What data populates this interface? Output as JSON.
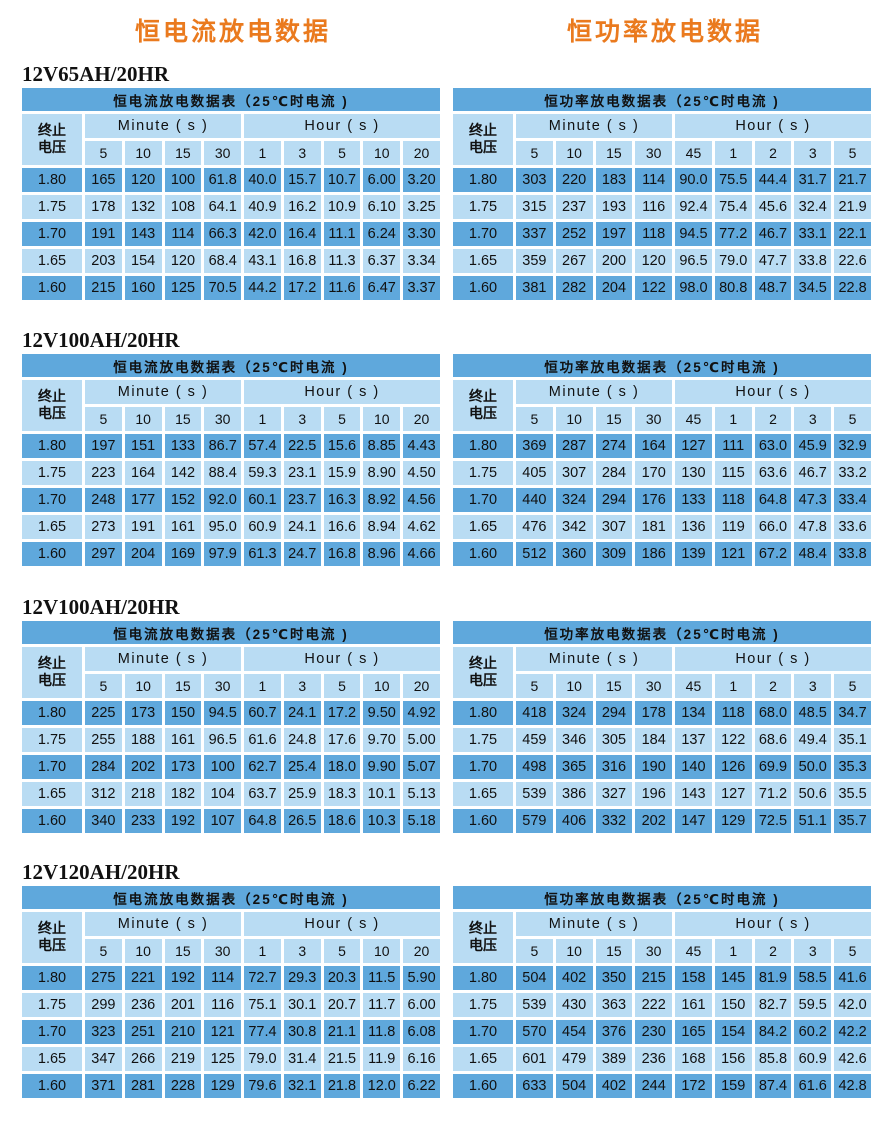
{
  "headings": {
    "left": "恒电流放电数据",
    "right": "恒功率放电数据"
  },
  "colors": {
    "heading": "#ea7a1e",
    "dark_row": "#5fa8dc",
    "light_row": "#b9dcf3"
  },
  "header": {
    "voltage_label_1": "终止",
    "voltage_label_2": "电压",
    "minute": "Minute ( s )",
    "hour": "Hour ( s )"
  },
  "cc_title": "恒电流放电数据表（25℃时电流 )",
  "cp_title": "恒功率放电数据表（25℃时电流 )",
  "cc_columns": [
    "5",
    "10",
    "15",
    "30",
    "1",
    "3",
    "5",
    "10",
    "20"
  ],
  "cp_columns": [
    "5",
    "10",
    "15",
    "30",
    "45",
    "1",
    "2",
    "3",
    "5"
  ],
  "sections": [
    {
      "model": "12V65AH/20HR",
      "cc": [
        [
          "1.80",
          "165",
          "120",
          "100",
          "61.8",
          "40.0",
          "15.7",
          "10.7",
          "6.00",
          "3.20"
        ],
        [
          "1.75",
          "178",
          "132",
          "108",
          "64.1",
          "40.9",
          "16.2",
          "10.9",
          "6.10",
          "3.25"
        ],
        [
          "1.70",
          "191",
          "143",
          "114",
          "66.3",
          "42.0",
          "16.4",
          "11.1",
          "6.24",
          "3.30"
        ],
        [
          "1.65",
          "203",
          "154",
          "120",
          "68.4",
          "43.1",
          "16.8",
          "11.3",
          "6.37",
          "3.34"
        ],
        [
          "1.60",
          "215",
          "160",
          "125",
          "70.5",
          "44.2",
          "17.2",
          "11.6",
          "6.47",
          "3.37"
        ]
      ],
      "cp": [
        [
          "1.80",
          "303",
          "220",
          "183",
          "114",
          "90.0",
          "75.5",
          "44.4",
          "31.7",
          "21.7"
        ],
        [
          "1.75",
          "315",
          "237",
          "193",
          "116",
          "92.4",
          "75.4",
          "45.6",
          "32.4",
          "21.9"
        ],
        [
          "1.70",
          "337",
          "252",
          "197",
          "118",
          "94.5",
          "77.2",
          "46.7",
          "33.1",
          "22.1"
        ],
        [
          "1.65",
          "359",
          "267",
          "200",
          "120",
          "96.5",
          "79.0",
          "47.7",
          "33.8",
          "22.6"
        ],
        [
          "1.60",
          "381",
          "282",
          "204",
          "122",
          "98.0",
          "80.8",
          "48.7",
          "34.5",
          "22.8"
        ]
      ]
    },
    {
      "model": "12V100AH/20HR",
      "cc": [
        [
          "1.80",
          "197",
          "151",
          "133",
          "86.7",
          "57.4",
          "22.5",
          "15.6",
          "8.85",
          "4.43"
        ],
        [
          "1.75",
          "223",
          "164",
          "142",
          "88.4",
          "59.3",
          "23.1",
          "15.9",
          "8.90",
          "4.50"
        ],
        [
          "1.70",
          "248",
          "177",
          "152",
          "92.0",
          "60.1",
          "23.7",
          "16.3",
          "8.92",
          "4.56"
        ],
        [
          "1.65",
          "273",
          "191",
          "161",
          "95.0",
          "60.9",
          "24.1",
          "16.6",
          "8.94",
          "4.62"
        ],
        [
          "1.60",
          "297",
          "204",
          "169",
          "97.9",
          "61.3",
          "24.7",
          "16.8",
          "8.96",
          "4.66"
        ]
      ],
      "cp": [
        [
          "1.80",
          "369",
          "287",
          "274",
          "164",
          "127",
          "111",
          "63.0",
          "45.9",
          "32.9"
        ],
        [
          "1.75",
          "405",
          "307",
          "284",
          "170",
          "130",
          "115",
          "63.6",
          "46.7",
          "33.2"
        ],
        [
          "1.70",
          "440",
          "324",
          "294",
          "176",
          "133",
          "118",
          "64.8",
          "47.3",
          "33.4"
        ],
        [
          "1.65",
          "476",
          "342",
          "307",
          "181",
          "136",
          "119",
          "66.0",
          "47.8",
          "33.6"
        ],
        [
          "1.60",
          "512",
          "360",
          "309",
          "186",
          "139",
          "121",
          "67.2",
          "48.4",
          "33.8"
        ]
      ]
    },
    {
      "model": "12V100AH/20HR",
      "cc": [
        [
          "1.80",
          "225",
          "173",
          "150",
          "94.5",
          "60.7",
          "24.1",
          "17.2",
          "9.50",
          "4.92"
        ],
        [
          "1.75",
          "255",
          "188",
          "161",
          "96.5",
          "61.6",
          "24.8",
          "17.6",
          "9.70",
          "5.00"
        ],
        [
          "1.70",
          "284",
          "202",
          "173",
          "100",
          "62.7",
          "25.4",
          "18.0",
          "9.90",
          "5.07"
        ],
        [
          "1.65",
          "312",
          "218",
          "182",
          "104",
          "63.7",
          "25.9",
          "18.3",
          "10.1",
          "5.13"
        ],
        [
          "1.60",
          "340",
          "233",
          "192",
          "107",
          "64.8",
          "26.5",
          "18.6",
          "10.3",
          "5.18"
        ]
      ],
      "cp": [
        [
          "1.80",
          "418",
          "324",
          "294",
          "178",
          "134",
          "118",
          "68.0",
          "48.5",
          "34.7"
        ],
        [
          "1.75",
          "459",
          "346",
          "305",
          "184",
          "137",
          "122",
          "68.6",
          "49.4",
          "35.1"
        ],
        [
          "1.70",
          "498",
          "365",
          "316",
          "190",
          "140",
          "126",
          "69.9",
          "50.0",
          "35.3"
        ],
        [
          "1.65",
          "539",
          "386",
          "327",
          "196",
          "143",
          "127",
          "71.2",
          "50.6",
          "35.5"
        ],
        [
          "1.60",
          "579",
          "406",
          "332",
          "202",
          "147",
          "129",
          "72.5",
          "51.1",
          "35.7"
        ]
      ]
    },
    {
      "model": "12V120AH/20HR",
      "cc": [
        [
          "1.80",
          "275",
          "221",
          "192",
          "114",
          "72.7",
          "29.3",
          "20.3",
          "11.5",
          "5.90"
        ],
        [
          "1.75",
          "299",
          "236",
          "201",
          "116",
          "75.1",
          "30.1",
          "20.7",
          "11.7",
          "6.00"
        ],
        [
          "1.70",
          "323",
          "251",
          "210",
          "121",
          "77.4",
          "30.8",
          "21.1",
          "11.8",
          "6.08"
        ],
        [
          "1.65",
          "347",
          "266",
          "219",
          "125",
          "79.0",
          "31.4",
          "21.5",
          "11.9",
          "6.16"
        ],
        [
          "1.60",
          "371",
          "281",
          "228",
          "129",
          "79.6",
          "32.1",
          "21.8",
          "12.0",
          "6.22"
        ]
      ],
      "cp": [
        [
          "1.80",
          "504",
          "402",
          "350",
          "215",
          "158",
          "145",
          "81.9",
          "58.5",
          "41.6"
        ],
        [
          "1.75",
          "539",
          "430",
          "363",
          "222",
          "161",
          "150",
          "82.7",
          "59.5",
          "42.0"
        ],
        [
          "1.70",
          "570",
          "454",
          "376",
          "230",
          "165",
          "154",
          "84.2",
          "60.2",
          "42.2"
        ],
        [
          "1.65",
          "601",
          "479",
          "389",
          "236",
          "168",
          "156",
          "85.8",
          "60.9",
          "42.6"
        ],
        [
          "1.60",
          "633",
          "504",
          "402",
          "244",
          "172",
          "159",
          "87.4",
          "61.6",
          "42.8"
        ]
      ]
    }
  ]
}
